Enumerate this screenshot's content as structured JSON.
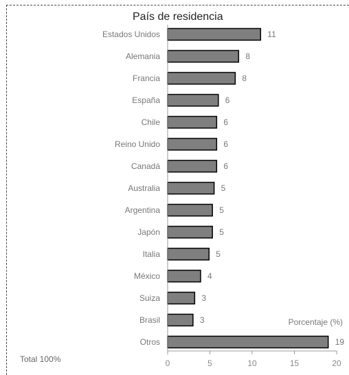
{
  "chart_data": {
    "type": "bar",
    "orientation": "horizontal",
    "title": "País de residencia",
    "xlabel": "Porcentaje (%)",
    "note": "Total 100%",
    "categories": [
      "Estados Unidos",
      "Alemania",
      "Francia",
      "España",
      "Chile",
      "Reino Unido",
      "Canadá",
      "Australia",
      "Argentina",
      "Japón",
      "Italia",
      "México",
      "Suiza",
      "Brasil",
      "Otros"
    ],
    "values": [
      11,
      8.4,
      8,
      6,
      5.8,
      5.8,
      5.8,
      5.5,
      5.3,
      5.3,
      4.9,
      3.9,
      3.2,
      3,
      19
    ],
    "value_labels": [
      "11",
      "8",
      "8",
      "6",
      "6",
      "6",
      "6",
      "5",
      "5",
      "5",
      "5",
      "4",
      "3",
      "3",
      "19"
    ],
    "xlim": [
      0,
      20
    ],
    "xticks": [
      0,
      5,
      10,
      15,
      20
    ],
    "bar_color": "#7f7f7f",
    "bar_edge_color": "#000000",
    "grid": false,
    "legend": "none"
  }
}
